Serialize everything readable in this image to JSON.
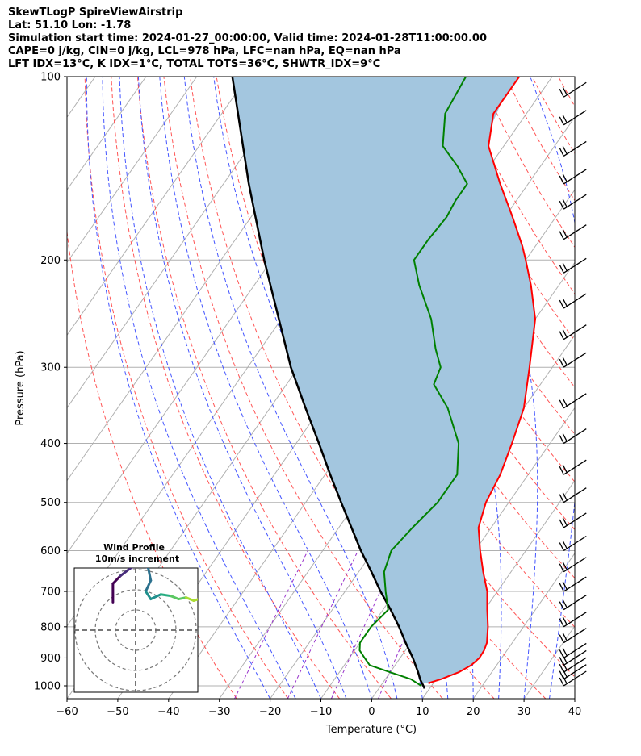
{
  "header": {
    "lines": [
      "SkewTLogP SpireViewAirstrip",
      "Lat: 51.10   Lon: -1.78",
      "Simulation start time: 2024-01-27_00:00:00, Valid time: 2024-01-28T11:00:00.00",
      "CAPE=0 j/kg, CIN=0 j/kg, LCL=978 hPa, LFC=nan hPa, EQ=nan hPa",
      "LFT IDX=13°C, K IDX=1°C, TOTAL TOTS=36°C, SHWTR_IDX=9°C"
    ]
  },
  "chart_data": {
    "type": "line",
    "subtype": "skew-t log-p",
    "xlabel": "Temperature (°C)",
    "ylabel": "Pressure (hPa)",
    "xlim": [
      -60,
      40
    ],
    "ylim": [
      1050,
      100
    ],
    "yscale": "log",
    "x_ticks": [
      -60,
      -50,
      -40,
      -30,
      -20,
      -10,
      0,
      10,
      20,
      30,
      40
    ],
    "x_tick_labels": [
      "−60",
      "−50",
      "−40",
      "−30",
      "−20",
      "−10",
      "0",
      "10",
      "20",
      "30",
      "40"
    ],
    "y_ticks": [
      1000,
      900,
      800,
      700,
      600,
      500,
      400,
      300,
      200,
      100
    ],
    "y_tick_labels": [
      "1000",
      "900",
      "800",
      "700",
      "600",
      "500",
      "400",
      "300",
      "200",
      "100"
    ],
    "grid": true,
    "colors": {
      "temperature": "#ff0000",
      "dewpoint": "#008000",
      "parcel": "#000000",
      "shade": "#a3c6df",
      "dry_adiabat": "#ff5555",
      "moist_adiabat": "#4455ff",
      "mixing_ratio": "#9933cc",
      "isotherm": "#b0b0b0"
    },
    "series": [
      {
        "id": "temperature",
        "p": [
          990,
          975,
          950,
          925,
          900,
          875,
          850,
          800,
          750,
          700,
          650,
          600,
          550,
          500,
          450,
          400,
          350,
          300,
          250,
          220,
          200,
          190,
          170,
          150,
          130,
          115,
          100
        ],
        "t": [
          9,
          11,
          13.5,
          15,
          15.6,
          15.5,
          15,
          13,
          10.5,
          8,
          4.5,
          1,
          -2.5,
          -4.5,
          -5.5,
          -7.5,
          -10,
          -14.5,
          -20,
          -25.5,
          -30,
          -32.5,
          -38.5,
          -45.5,
          -53,
          -56.5,
          -56.5
        ]
      },
      {
        "id": "dewpoint",
        "p": [
          1000,
          975,
          950,
          925,
          900,
          875,
          850,
          800,
          750,
          700,
          650,
          600,
          550,
          500,
          450,
          400,
          350,
          320,
          300,
          280,
          250,
          220,
          200,
          185,
          170,
          160,
          150,
          140,
          130,
          115,
          100
        ],
        "t": [
          8,
          5,
          0,
          -5,
          -7,
          -9,
          -10,
          -10,
          -9,
          -12,
          -15,
          -16.5,
          -15.5,
          -14,
          -14,
          -18,
          -25,
          -31,
          -32,
          -35.5,
          -40.5,
          -47.5,
          -52,
          -52,
          -51.5,
          -52,
          -52,
          -56.5,
          -62,
          -66,
          -67
        ]
      },
      {
        "id": "parcel",
        "p": [
          1010,
          1000,
          978,
          950,
          900,
          850,
          800,
          750,
          700,
          650,
          600,
          550,
          500,
          450,
          400,
          350,
          300,
          250,
          200,
          150,
          100
        ],
        "t": [
          9,
          8.4,
          7,
          5.5,
          2.5,
          -1,
          -4.5,
          -8.5,
          -13,
          -17.5,
          -22.5,
          -27.5,
          -33,
          -39,
          -45.5,
          -53,
          -61.5,
          -70.5,
          -81.5,
          -95,
          -113
        ]
      }
    ],
    "wind_barbs": {
      "x": 37.5,
      "p": [
        1000,
        975,
        950,
        925,
        900,
        850,
        800,
        750,
        700,
        650,
        600,
        550,
        500,
        450,
        400,
        350,
        300,
        270,
        240,
        210,
        185,
        165,
        150,
        135,
        120,
        108
      ]
    },
    "inset": {
      "title": "Wind Profile",
      "subtitle": "10m/s increment",
      "rings": [
        1,
        2,
        3
      ],
      "hodograph": {
        "u": [
          -4.5,
          -4.5,
          -3,
          -1,
          1,
          2.5,
          3,
          2,
          3,
          5,
          7,
          8.5,
          10,
          11.5,
          12.5,
          13
        ],
        "v": [
          1.8,
          3,
          3.5,
          4,
          4.3,
          4,
          3.2,
          2.5,
          2,
          2.3,
          2.2,
          2.0,
          2.1,
          1.9,
          2.0,
          1.6
        ]
      }
    }
  }
}
